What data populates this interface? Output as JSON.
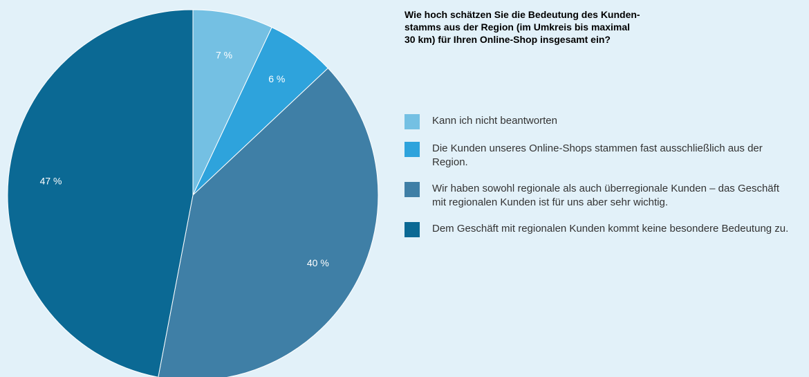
{
  "chart_data": {
    "type": "pie",
    "title": [
      "Wie hoch schätzen Sie die Bedeutung des Kunden-",
      "stamms aus der Region (im Umkreis bis maximal",
      "30 km) für Ihren Online-Shop insgesamt ein?"
    ],
    "categories": [
      "Kann ich nicht beantworten",
      "Die Kunden unseres Online-Shops stammen fast ausschließlich aus der Region.",
      "Wir haben sowohl regionale als auch überregionale Kunden – das Geschäft mit regionalen Kunden ist für uns aber sehr wichtig.",
      "Dem Geschäft mit regionalen Kunden kommt keine besondere Bedeutung zu."
    ],
    "values": [
      7,
      6,
      40,
      47
    ],
    "value_labels": [
      "7 %",
      "6 %",
      "40 %",
      "47 %"
    ],
    "colors": [
      "#74c0e3",
      "#2ea3dc",
      "#3f7fa6",
      "#0b6994"
    ],
    "legend": "right"
  }
}
